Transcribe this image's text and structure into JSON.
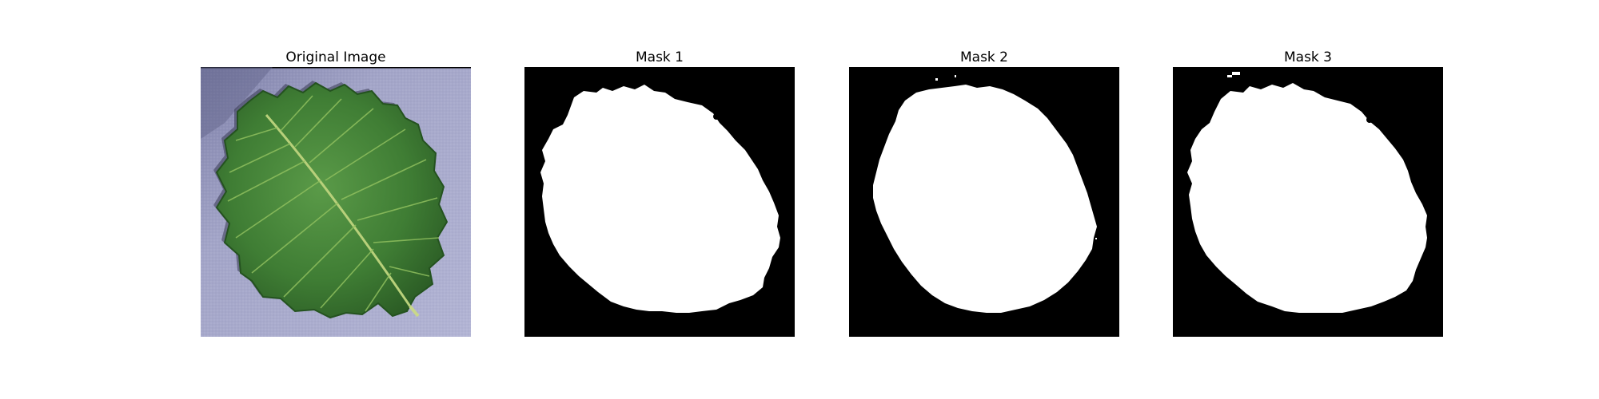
{
  "panels": [
    {
      "title": "Original Image",
      "content": "leaf-photo"
    },
    {
      "title": "Mask 1",
      "content": "binary-mask"
    },
    {
      "title": "Mask 2",
      "content": "binary-mask"
    },
    {
      "title": "Mask 3",
      "content": "binary-mask"
    }
  ],
  "colors": {
    "page_background": "#ffffff",
    "mask_background": "#000000",
    "mask_foreground": "#ffffff",
    "leaf_green": "#3f7d34",
    "leaf_dark": "#24521f",
    "surface_lavender": "#9ea0c5",
    "surface_shadow": "#6f7199"
  }
}
